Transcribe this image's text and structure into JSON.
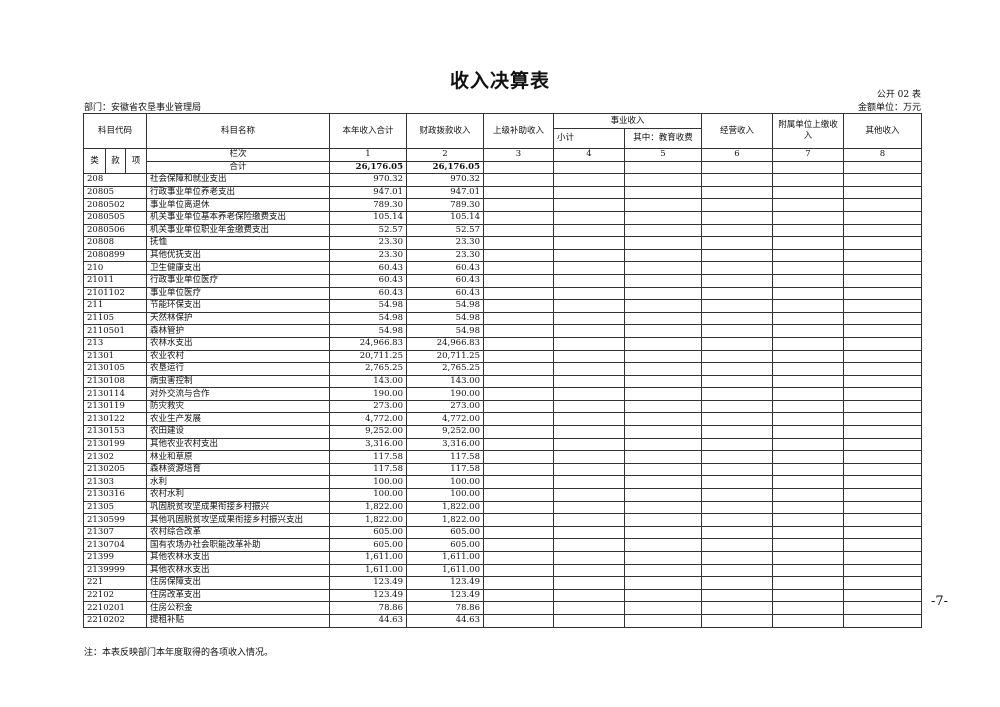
{
  "title": "收入决算表",
  "form_no": "公开 02 表",
  "department": "部门：安徽省农垦事业管理局",
  "unit": "金额单位：万元",
  "page_number": "-7-",
  "note": "注：本表反映部门本年度取得的各项收入情况。",
  "headers": {
    "code": "科目代码",
    "name": "科目名称",
    "total": "本年收入合计",
    "fiscal": "财政拨款收入",
    "superior": "上级补助收入",
    "business": "事业收入",
    "subtotal": "小计",
    "education": "其中：教育收费",
    "operating": "经营收入",
    "affiliated": "附属单位上缴收入",
    "other": "其他收入",
    "lei": "类",
    "kuan": "款",
    "xiang": "项",
    "column_order": "栏次",
    "col_numbers": [
      "1",
      "2",
      "3",
      "4",
      "5",
      "6",
      "7",
      "8"
    ]
  },
  "total_row": {
    "label": "合计",
    "total": "26,176.05",
    "fiscal": "26,176.05"
  },
  "rows": [
    {
      "code": "208",
      "name": "社会保障和就业支出",
      "total": "970.32",
      "fiscal": "970.32"
    },
    {
      "code": "20805",
      "name": "行政事业单位养老支出",
      "total": "947.01",
      "fiscal": "947.01"
    },
    {
      "code": "2080502",
      "name": "事业单位离退休",
      "total": "789.30",
      "fiscal": "789.30"
    },
    {
      "code": "2080505",
      "name": "机关事业单位基本养老保险缴费支出",
      "total": "105.14",
      "fiscal": "105.14"
    },
    {
      "code": "2080506",
      "name": "机关事业单位职业年金缴费支出",
      "total": "52.57",
      "fiscal": "52.57"
    },
    {
      "code": "20808",
      "name": "抚恤",
      "total": "23.30",
      "fiscal": "23.30"
    },
    {
      "code": "2080899",
      "name": "其他优抚支出",
      "total": "23.30",
      "fiscal": "23.30"
    },
    {
      "code": "210",
      "name": "卫生健康支出",
      "total": "60.43",
      "fiscal": "60.43"
    },
    {
      "code": "21011",
      "name": "行政事业单位医疗",
      "total": "60.43",
      "fiscal": "60.43"
    },
    {
      "code": "2101102",
      "name": "事业单位医疗",
      "total": "60.43",
      "fiscal": "60.43"
    },
    {
      "code": "211",
      "name": "节能环保支出",
      "total": "54.98",
      "fiscal": "54.98"
    },
    {
      "code": "21105",
      "name": "天然林保护",
      "total": "54.98",
      "fiscal": "54.98"
    },
    {
      "code": "2110501",
      "name": "森林管护",
      "total": "54.98",
      "fiscal": "54.98"
    },
    {
      "code": "213",
      "name": "农林水支出",
      "total": "24,966.83",
      "fiscal": "24,966.83"
    },
    {
      "code": "21301",
      "name": "农业农村",
      "total": "20,711.25",
      "fiscal": "20,711.25"
    },
    {
      "code": "2130105",
      "name": "农垦运行",
      "total": "2,765.25",
      "fiscal": "2,765.25"
    },
    {
      "code": "2130108",
      "name": "病虫害控制",
      "total": "143.00",
      "fiscal": "143.00"
    },
    {
      "code": "2130114",
      "name": "对外交流与合作",
      "total": "190.00",
      "fiscal": "190.00"
    },
    {
      "code": "2130119",
      "name": "防灾救灾",
      "total": "273.00",
      "fiscal": "273.00"
    },
    {
      "code": "2130122",
      "name": "农业生产发展",
      "total": "4,772.00",
      "fiscal": "4,772.00"
    },
    {
      "code": "2130153",
      "name": "农田建设",
      "total": "9,252.00",
      "fiscal": "9,252.00"
    },
    {
      "code": "2130199",
      "name": "其他农业农村支出",
      "total": "3,316.00",
      "fiscal": "3,316.00"
    },
    {
      "code": "21302",
      "name": "林业和草原",
      "total": "117.58",
      "fiscal": "117.58"
    },
    {
      "code": "2130205",
      "name": "森林资源培育",
      "total": "117.58",
      "fiscal": "117.58"
    },
    {
      "code": "21303",
      "name": "水利",
      "total": "100.00",
      "fiscal": "100.00"
    },
    {
      "code": "2130316",
      "name": "农村水利",
      "total": "100.00",
      "fiscal": "100.00"
    },
    {
      "code": "21305",
      "name": "巩固脱贫攻坚成果衔接乡村振兴",
      "total": "1,822.00",
      "fiscal": "1,822.00"
    },
    {
      "code": "2130599",
      "name": "其他巩固脱贫攻坚成果衔接乡村振兴支出",
      "total": "1,822.00",
      "fiscal": "1,822.00"
    },
    {
      "code": "21307",
      "name": "农村综合改革",
      "total": "605.00",
      "fiscal": "605.00"
    },
    {
      "code": "2130704",
      "name": "国有农场办社会职能改革补助",
      "total": "605.00",
      "fiscal": "605.00"
    },
    {
      "code": "21399",
      "name": "其他农林水支出",
      "total": "1,611.00",
      "fiscal": "1,611.00"
    },
    {
      "code": "2139999",
      "name": "其他农林水支出",
      "total": "1,611.00",
      "fiscal": "1,611.00"
    },
    {
      "code": "221",
      "name": "住房保障支出",
      "total": "123.49",
      "fiscal": "123.49"
    },
    {
      "code": "22102",
      "name": "住房改革支出",
      "total": "123.49",
      "fiscal": "123.49"
    },
    {
      "code": "2210201",
      "name": "住房公积金",
      "total": "78.86",
      "fiscal": "78.86"
    },
    {
      "code": "2210202",
      "name": "提租补贴",
      "total": "44.63",
      "fiscal": "44.63"
    }
  ]
}
